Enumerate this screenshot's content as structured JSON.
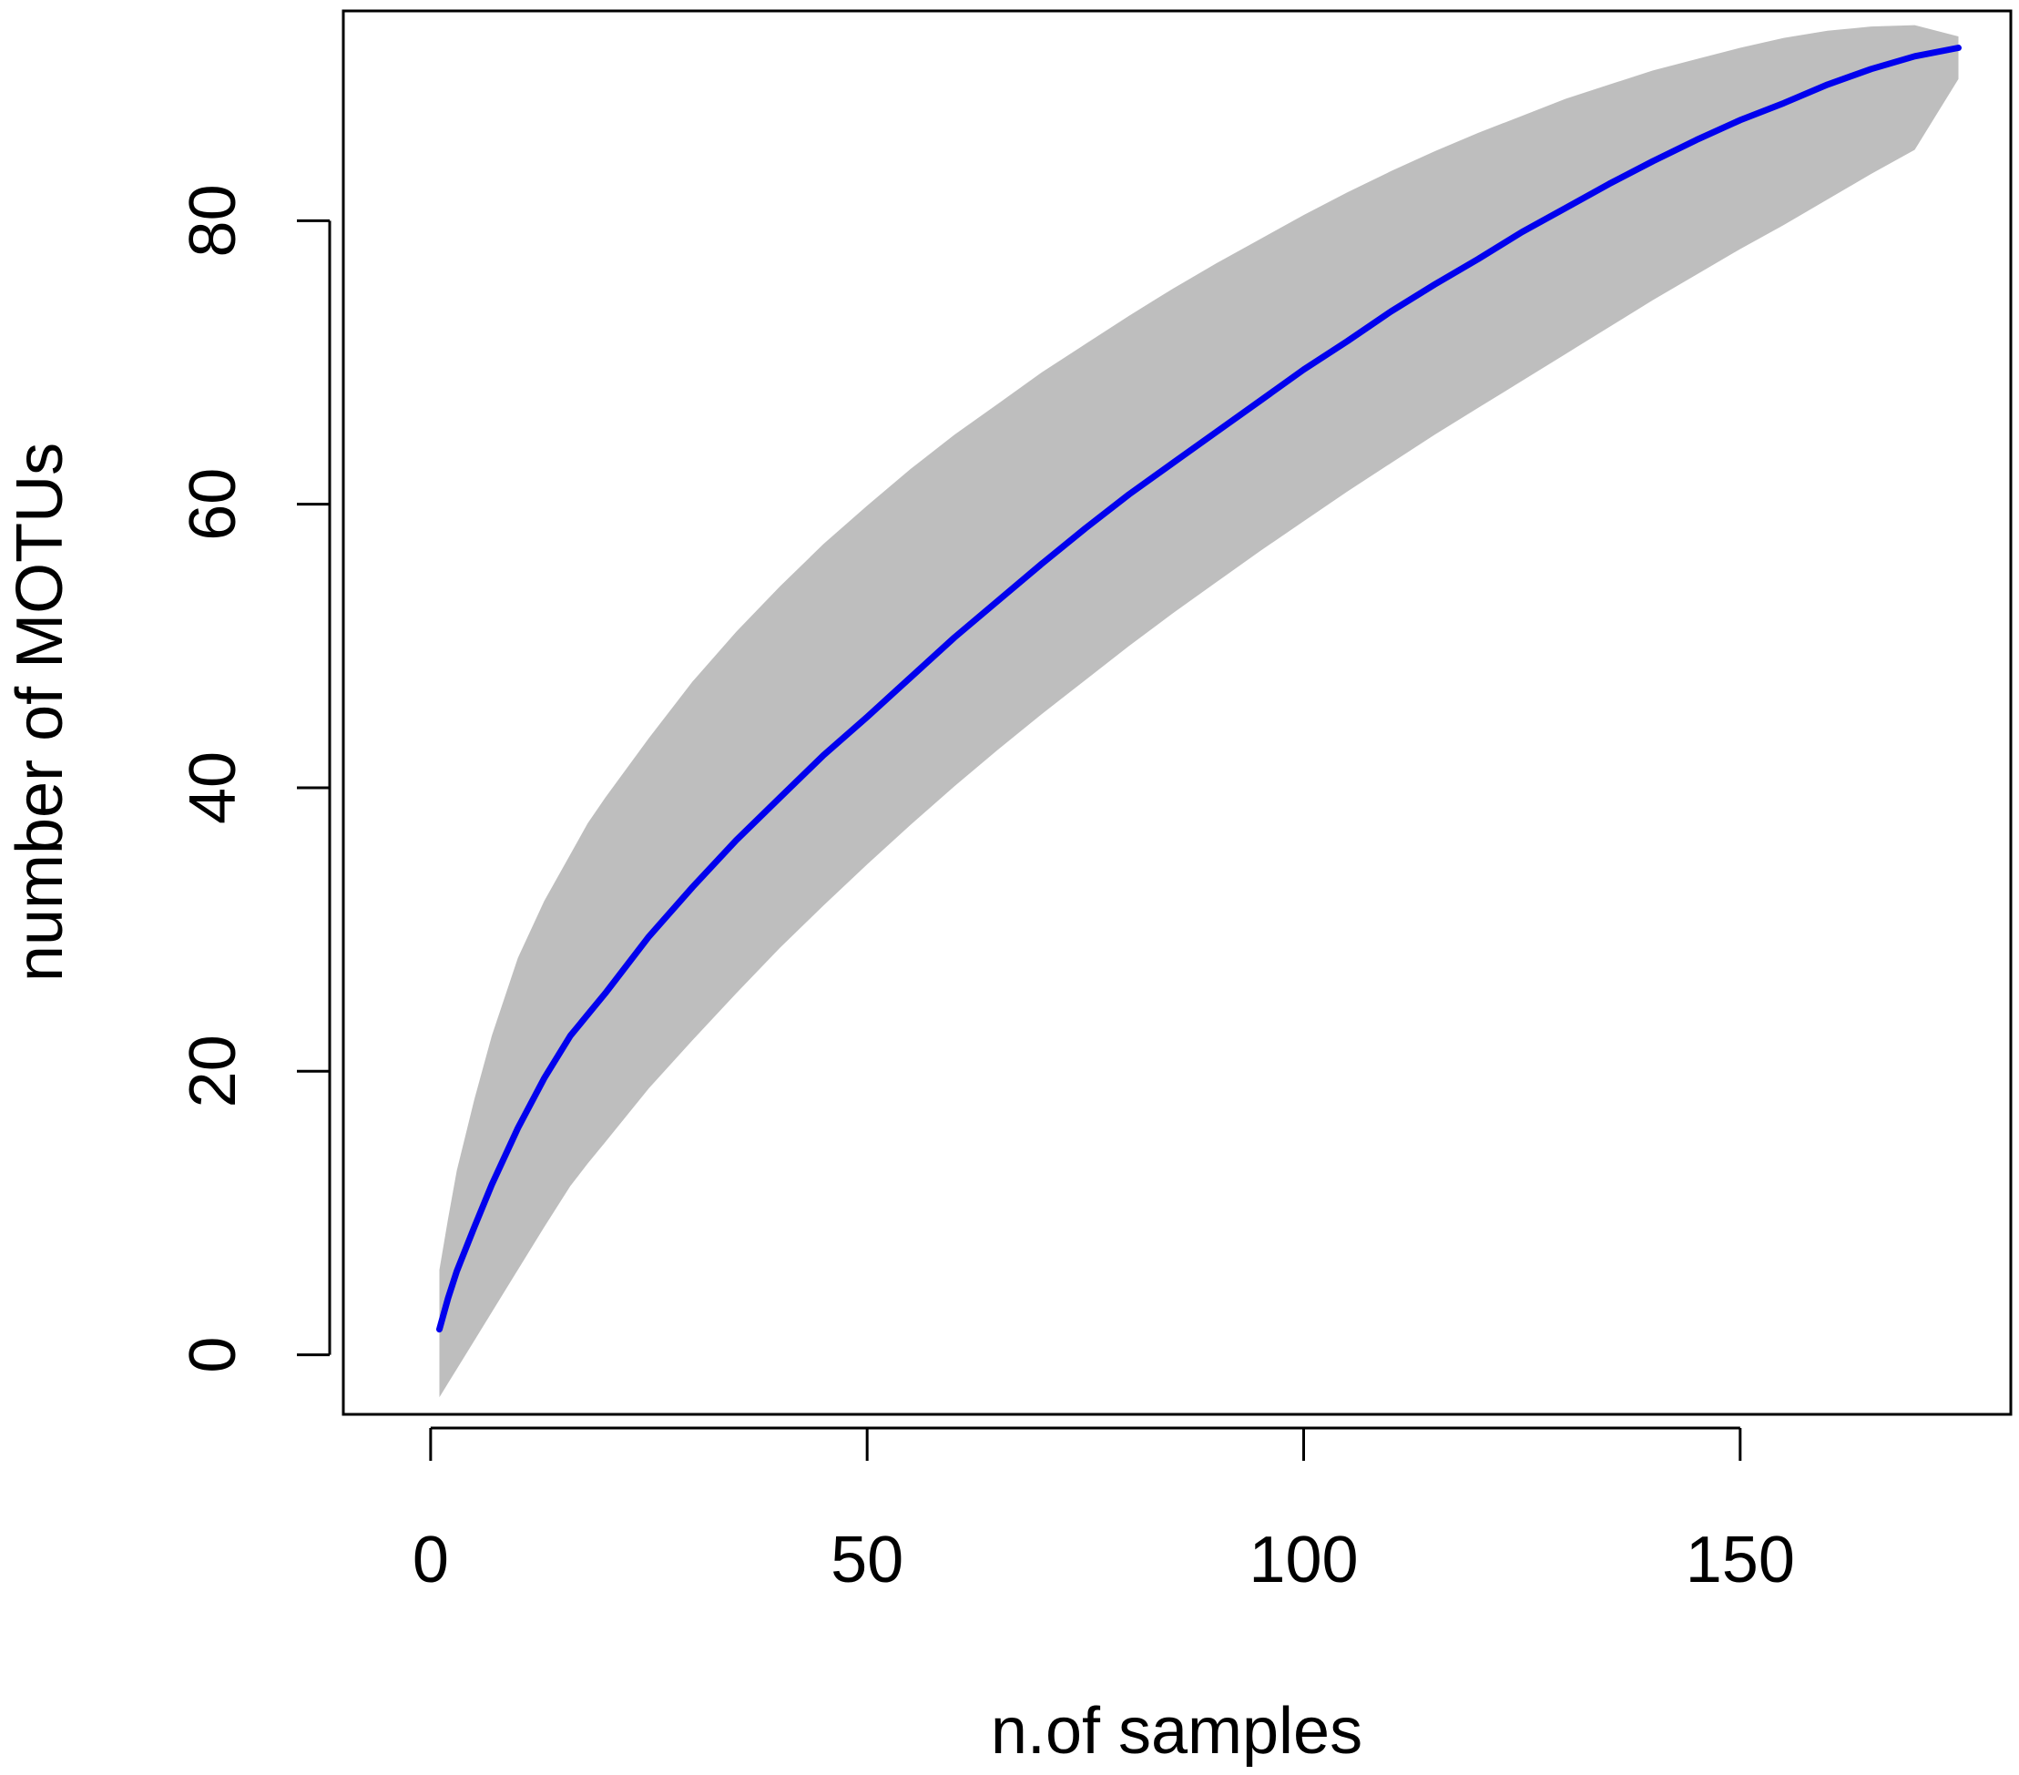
{
  "chart_data": {
    "type": "area",
    "title": "",
    "xlabel": "n.of samples",
    "ylabel": "number of MOTUs",
    "xlim": [
      -10,
      181
    ],
    "ylim": [
      -4.2,
      94.8
    ],
    "x_ticks": [
      0,
      50,
      100,
      150
    ],
    "y_ticks": [
      0,
      20,
      40,
      60,
      80
    ],
    "x_tick_labels": [
      "0",
      "50",
      "100",
      "150"
    ],
    "y_tick_labels": [
      "0",
      "20",
      "40",
      "60",
      "80"
    ],
    "grid": false,
    "legend": "none",
    "colors": {
      "mean_line": "#0000ee",
      "band": "#bebebe",
      "axis": "#000000"
    },
    "series": [
      {
        "kind": "line",
        "x": [
          1,
          2,
          3,
          5,
          7,
          10,
          13,
          16,
          18,
          20,
          25,
          30,
          35,
          40,
          45,
          50,
          55,
          60,
          65,
          70,
          75,
          80,
          85,
          90,
          95,
          100,
          105,
          110,
          115,
          120,
          125,
          130,
          135,
          140,
          145,
          150,
          155,
          160,
          165,
          170,
          175
        ],
        "y": [
          1.8,
          4.0,
          5.9,
          9.0,
          12.0,
          16.0,
          19.5,
          22.5,
          24.0,
          25.5,
          29.5,
          33.0,
          36.3,
          39.3,
          42.3,
          45.0,
          47.8,
          50.6,
          53.2,
          55.8,
          58.3,
          60.7,
          62.9,
          65.1,
          67.3,
          69.5,
          71.5,
          73.6,
          75.5,
          77.3,
          79.2,
          80.9,
          82.6,
          84.2,
          85.7,
          87.1,
          88.3,
          89.6,
          90.7,
          91.6,
          92.2
        ]
      },
      {
        "kind": "band",
        "x": [
          1,
          2,
          3,
          5,
          7,
          10,
          13,
          16,
          18,
          20,
          25,
          30,
          35,
          40,
          45,
          50,
          55,
          60,
          65,
          70,
          75,
          80,
          85,
          90,
          95,
          100,
          105,
          110,
          115,
          120,
          125,
          130,
          135,
          140,
          145,
          150,
          155,
          160,
          165,
          170,
          175
        ],
        "upper": [
          6.0,
          9.6,
          13.0,
          18.0,
          22.5,
          28.0,
          32.0,
          35.3,
          37.5,
          39.3,
          43.5,
          47.5,
          51.0,
          54.2,
          57.2,
          59.9,
          62.5,
          64.9,
          67.1,
          69.3,
          71.3,
          73.3,
          75.2,
          77.0,
          78.7,
          80.4,
          82.0,
          83.5,
          84.9,
          86.2,
          87.4,
          88.6,
          89.6,
          90.6,
          91.4,
          92.2,
          92.9,
          93.4,
          93.7,
          93.8,
          93.0
        ],
        "lower": [
          -3.0,
          -2.0,
          -1.0,
          1.0,
          3.0,
          6.0,
          9.0,
          11.9,
          13.5,
          15.0,
          18.8,
          22.2,
          25.5,
          28.7,
          31.7,
          34.6,
          37.4,
          40.1,
          42.7,
          45.2,
          47.6,
          50.0,
          52.3,
          54.5,
          56.7,
          58.8,
          60.9,
          62.9,
          64.9,
          66.8,
          68.7,
          70.6,
          72.5,
          74.4,
          76.2,
          78.0,
          79.7,
          81.5,
          83.3,
          85.0,
          90.0
        ]
      }
    ]
  }
}
